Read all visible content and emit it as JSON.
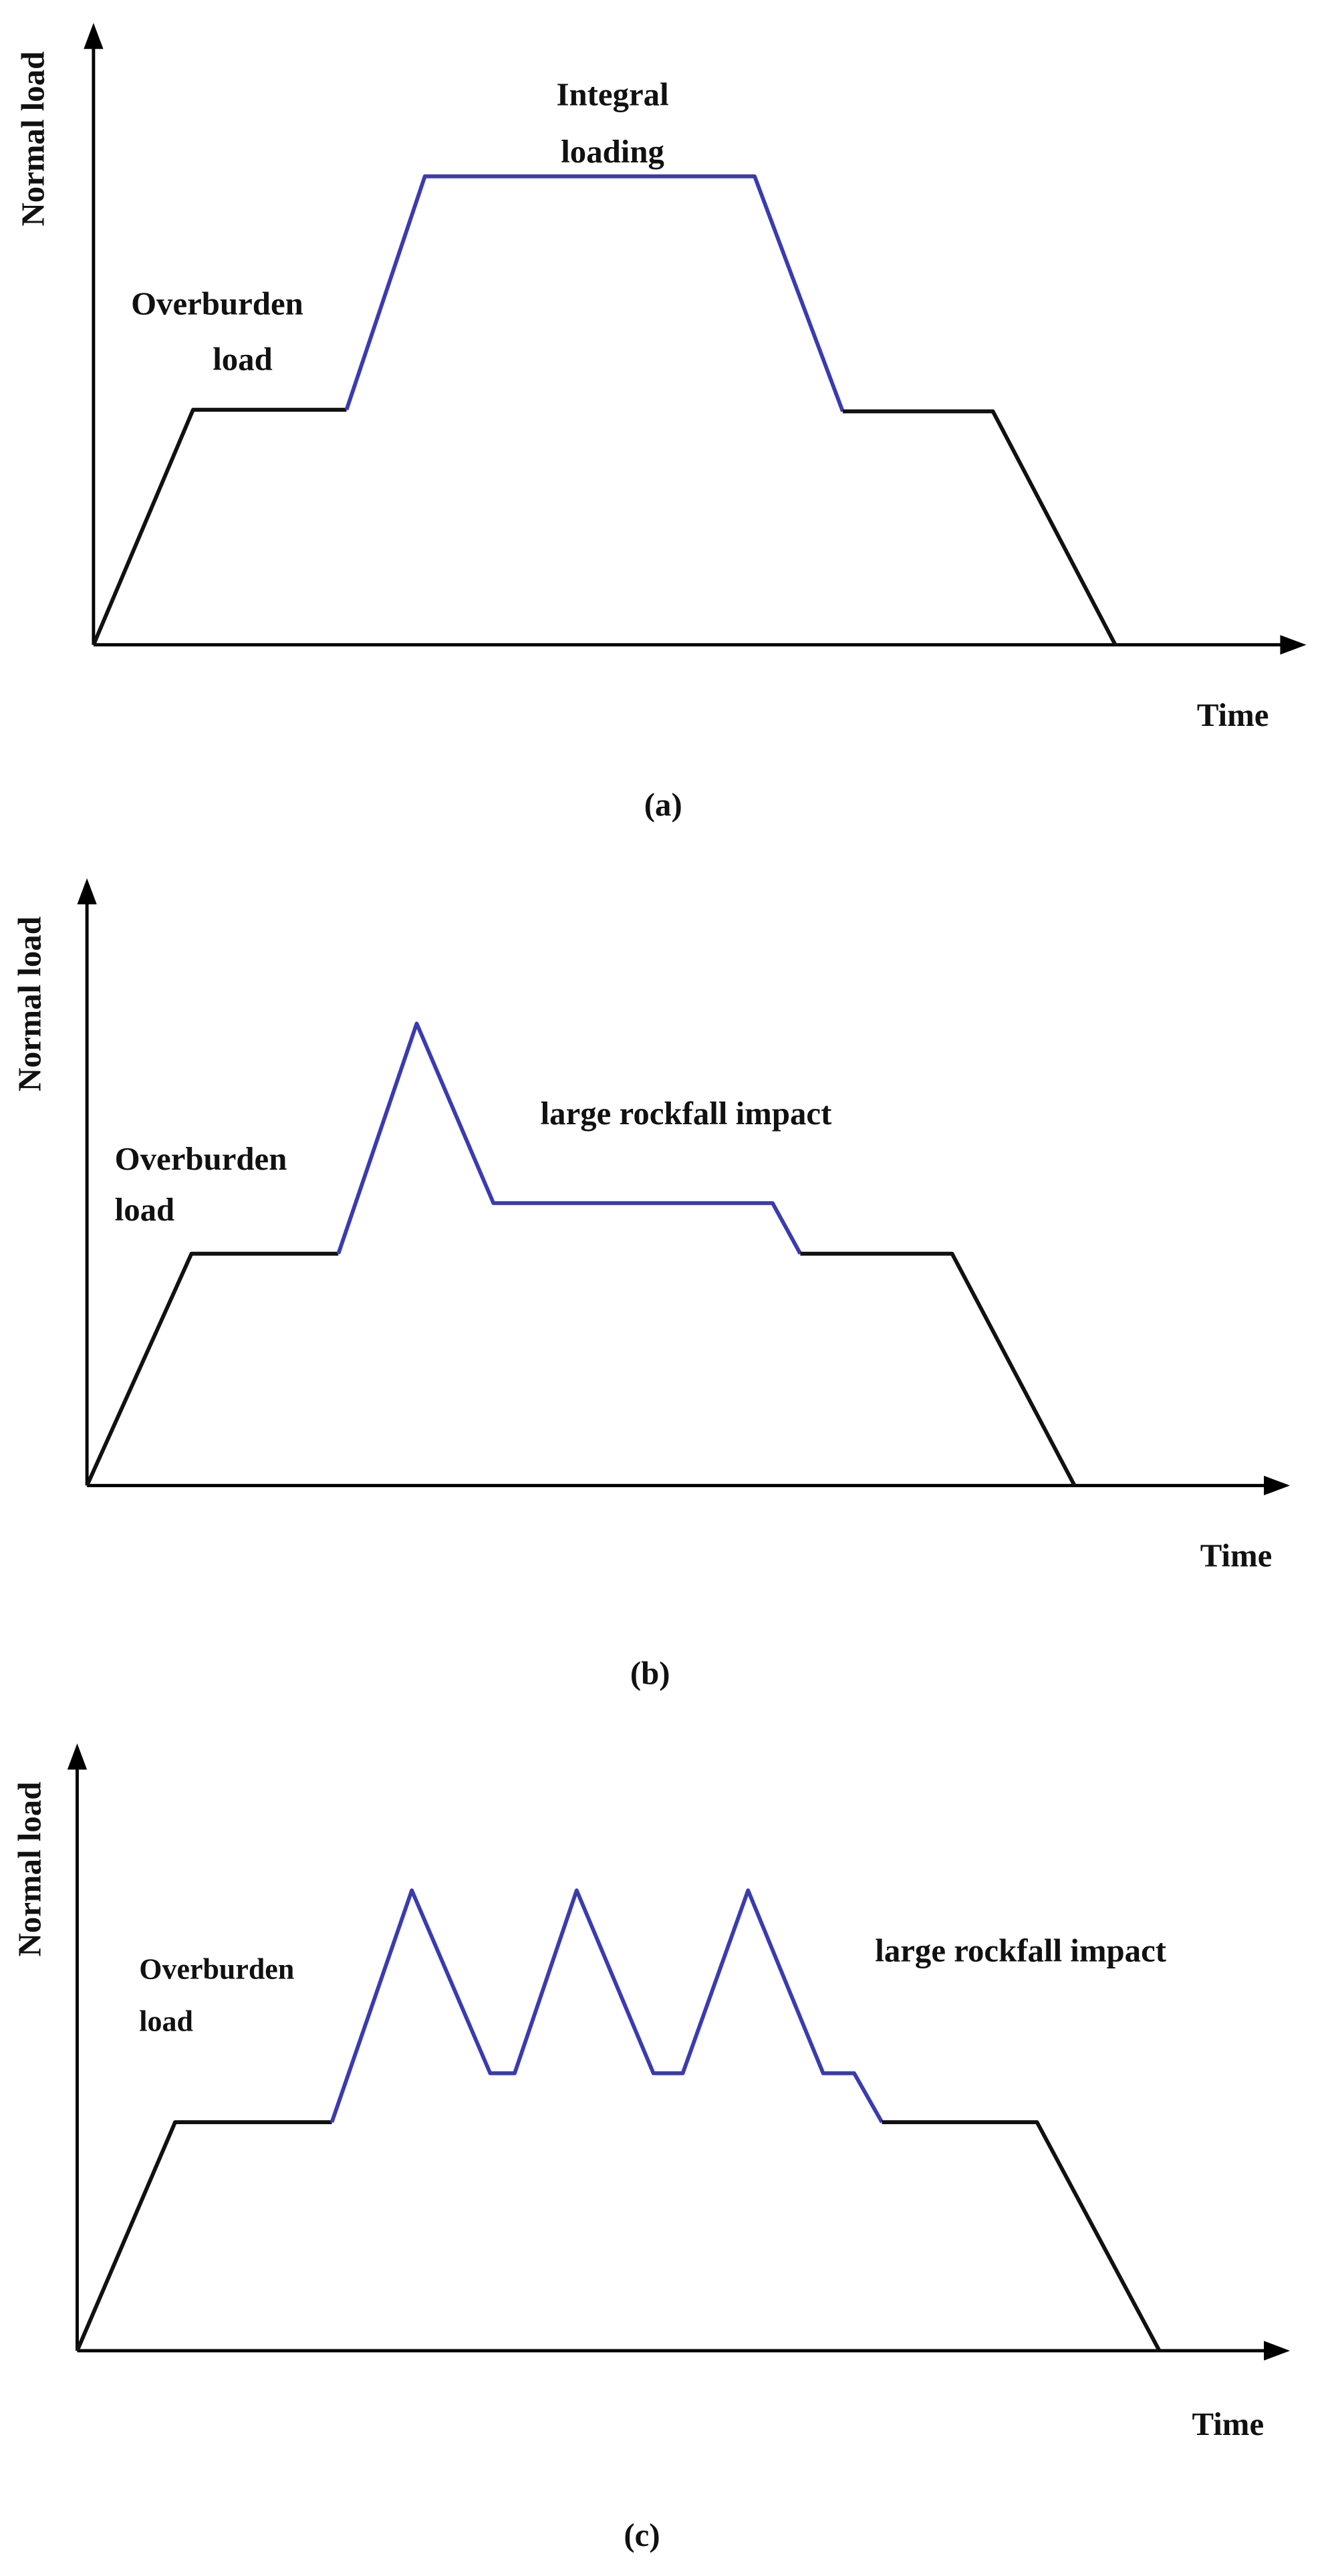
{
  "panels": [
    {
      "y_label": "Normal load",
      "x_label": "Time",
      "annotations": [
        "Integral",
        "loading",
        "Overburden",
        "load"
      ],
      "caption": "(a)"
    },
    {
      "y_label": "Normal load",
      "x_label": "Time",
      "annotations": [
        "large rockfall impact",
        "Overburden",
        "load"
      ],
      "caption": "(b)"
    },
    {
      "y_label": "Normal load",
      "x_label": "Time",
      "annotations": [
        "large rockfall impact",
        "Overburden",
        "load"
      ],
      "caption": "(c)"
    }
  ]
}
